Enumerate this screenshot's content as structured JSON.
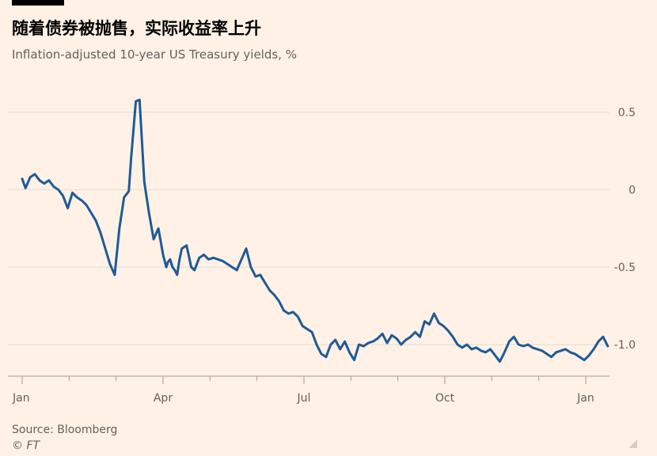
{
  "title": "随着债券被抛售，实际收益率上升",
  "subtitle": "Inflation-adjusted 10-year US Treasury yields, %",
  "source": "Source: Bloomberg",
  "credit": "© FT",
  "colors": {
    "background": "#fff1e5",
    "line": "#1f5a96",
    "grid": "#e6d9ce",
    "text": "#66605c"
  },
  "chart_data": {
    "type": "line",
    "title": "随着债券被抛售，实际收益率上升",
    "subtitle": "Inflation-adjusted 10-year US Treasury yields, %",
    "xlabel": "",
    "ylabel": "",
    "x_tick_labels": [
      "Jan",
      "Apr",
      "Jul",
      "Oct",
      "Jan"
    ],
    "y_ticks": [
      0.5,
      0,
      -0.5,
      -1.0
    ],
    "y_tick_labels": [
      "0.5",
      "0",
      "-0.5",
      "-1.0"
    ],
    "ylim": [
      -1.2,
      0.6
    ],
    "x_range_months": [
      0,
      12.8
    ],
    "y_axis_side": "right",
    "grid": true,
    "series": [
      {
        "x": [
          0.0,
          0.07,
          0.17,
          0.27,
          0.37,
          0.47,
          0.57,
          0.67,
          0.77,
          0.87,
          0.97,
          1.07,
          1.17,
          1.27,
          1.37,
          1.47,
          1.57,
          1.67,
          1.77,
          1.87,
          1.97,
          2.07,
          2.17,
          2.27,
          2.32,
          2.42,
          2.5,
          2.6,
          2.7,
          2.8,
          2.9,
          3.0,
          3.07,
          3.1,
          3.15,
          3.2,
          3.25,
          3.3,
          3.35,
          3.4,
          3.5,
          3.6,
          3.67,
          3.77,
          3.87,
          3.97,
          4.07,
          4.17,
          4.27,
          4.37,
          4.47,
          4.57,
          4.67,
          4.77,
          4.87,
          4.97,
          5.07,
          5.17,
          5.27,
          5.37,
          5.47,
          5.57,
          5.67,
          5.77,
          5.87,
          5.97,
          6.07,
          6.17,
          6.27,
          6.37,
          6.47,
          6.57,
          6.67,
          6.77,
          6.87,
          6.97,
          7.07,
          7.17,
          7.27,
          7.37,
          7.47,
          7.57,
          7.67,
          7.77,
          7.87,
          7.97,
          8.07,
          8.17,
          8.27,
          8.37,
          8.47,
          8.57,
          8.67,
          8.77,
          8.87,
          8.97,
          9.07,
          9.17,
          9.27,
          9.37,
          9.47,
          9.57,
          9.67,
          9.77,
          9.87,
          9.97,
          10.07,
          10.17,
          10.27,
          10.37,
          10.47,
          10.57,
          10.67,
          10.77,
          10.87,
          10.97,
          11.07,
          11.17,
          11.27,
          11.37,
          11.47,
          11.57,
          11.67,
          11.77,
          11.87,
          11.97,
          12.07,
          12.17,
          12.27,
          12.37,
          12.47
        ],
        "values": [
          0.07,
          0.01,
          0.08,
          0.1,
          0.06,
          0.04,
          0.06,
          0.02,
          0.0,
          -0.04,
          -0.12,
          -0.02,
          -0.05,
          -0.07,
          -0.1,
          -0.15,
          -0.2,
          -0.28,
          -0.38,
          -0.48,
          -0.55,
          -0.25,
          -0.05,
          -0.01,
          0.2,
          0.57,
          0.58,
          0.05,
          -0.15,
          -0.32,
          -0.25,
          -0.42,
          -0.5,
          -0.47,
          -0.45,
          -0.5,
          -0.52,
          -0.55,
          -0.45,
          -0.38,
          -0.36,
          -0.5,
          -0.52,
          -0.44,
          -0.42,
          -0.45,
          -0.44,
          -0.45,
          -0.46,
          -0.48,
          -0.5,
          -0.52,
          -0.45,
          -0.38,
          -0.5,
          -0.56,
          -0.55,
          -0.6,
          -0.65,
          -0.68,
          -0.72,
          -0.78,
          -0.8,
          -0.79,
          -0.82,
          -0.88,
          -0.9,
          -0.92,
          -1.0,
          -1.06,
          -1.08,
          -1.0,
          -0.97,
          -1.03,
          -0.98,
          -1.05,
          -1.1,
          -1.0,
          -1.01,
          -0.99,
          -0.98,
          -0.96,
          -0.93,
          -0.99,
          -0.94,
          -0.96,
          -1.0,
          -0.97,
          -0.95,
          -0.92,
          -0.95,
          -0.85,
          -0.87,
          -0.8,
          -0.86,
          -0.88,
          -0.91,
          -0.95,
          -1.0,
          -1.02,
          -1.0,
          -1.03,
          -1.02,
          -1.04,
          -1.05,
          -1.03,
          -1.07,
          -1.11,
          -1.05,
          -0.98,
          -0.95,
          -1.0,
          -1.01,
          -1.0,
          -1.02,
          -1.03,
          -1.04,
          -1.06,
          -1.08,
          -1.05,
          -1.04,
          -1.03,
          -1.05,
          -1.06,
          -1.08,
          -1.1,
          -1.07,
          -1.03,
          -0.98,
          -0.95,
          -1.01
        ]
      }
    ]
  }
}
